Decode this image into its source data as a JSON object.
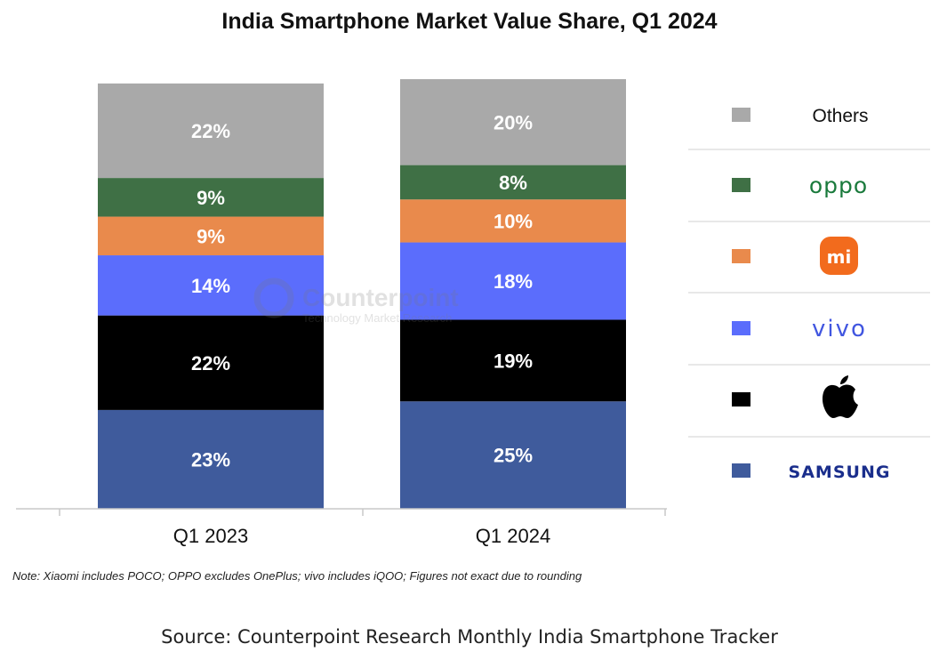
{
  "chart_data": {
    "type": "bar",
    "stacked": true,
    "title": "India Smartphone Market Value Share, Q1 2024",
    "categories": [
      "Q1 2023",
      "Q1 2024"
    ],
    "series": [
      {
        "name": "SAMSUNG",
        "color": "#3f5b9c",
        "values": [
          23,
          25
        ],
        "labels": [
          "23%",
          "25%"
        ],
        "legend_icon": "samsung-logo"
      },
      {
        "name": "Apple",
        "color": "#000000",
        "values": [
          22,
          19
        ],
        "labels": [
          "22%",
          "19%"
        ],
        "legend_icon": "apple-logo-icon"
      },
      {
        "name": "vivo",
        "color": "#5b6dfc",
        "values": [
          14,
          18
        ],
        "labels": [
          "14%",
          "18%"
        ],
        "legend_icon": "vivo-logo"
      },
      {
        "name": "Xiaomi",
        "color": "#e98a4c",
        "values": [
          9,
          10
        ],
        "labels": [
          "9%",
          "10%"
        ],
        "legend_icon": "xiaomi-mi-logo-icon"
      },
      {
        "name": "oppo",
        "color": "#3f7045",
        "values": [
          9,
          8
        ],
        "labels": [
          "9%",
          "8%"
        ],
        "legend_icon": "oppo-logo"
      },
      {
        "name": "Others",
        "color": "#a9a9a9",
        "values": [
          22,
          20
        ],
        "labels": [
          "22%",
          "20%"
        ],
        "legend_icon": "none"
      }
    ],
    "ylim": [
      0,
      100
    ],
    "grid": false,
    "legend_position": "right"
  },
  "legend": {
    "others_label": "Others",
    "oppo_logo_text": "oppo",
    "xiaomi_logo_text": "mi",
    "vivo_logo_text": "vivo",
    "samsung_logo_text": "SAMSUNG",
    "oppo_color": "#1a7a3c",
    "xiaomi_color": "#f26b1d",
    "vivo_color": "#4156e0",
    "samsung_color": "#1a2e8c"
  },
  "watermark": {
    "name": "Counterpoint",
    "tagline": "Technology Market Research"
  },
  "note": "Note: Xiaomi includes POCO; OPPO excludes OnePlus; vivo includes iQOO; Figures not exact due to rounding",
  "source": "Source: Counterpoint Research Monthly India Smartphone Tracker"
}
